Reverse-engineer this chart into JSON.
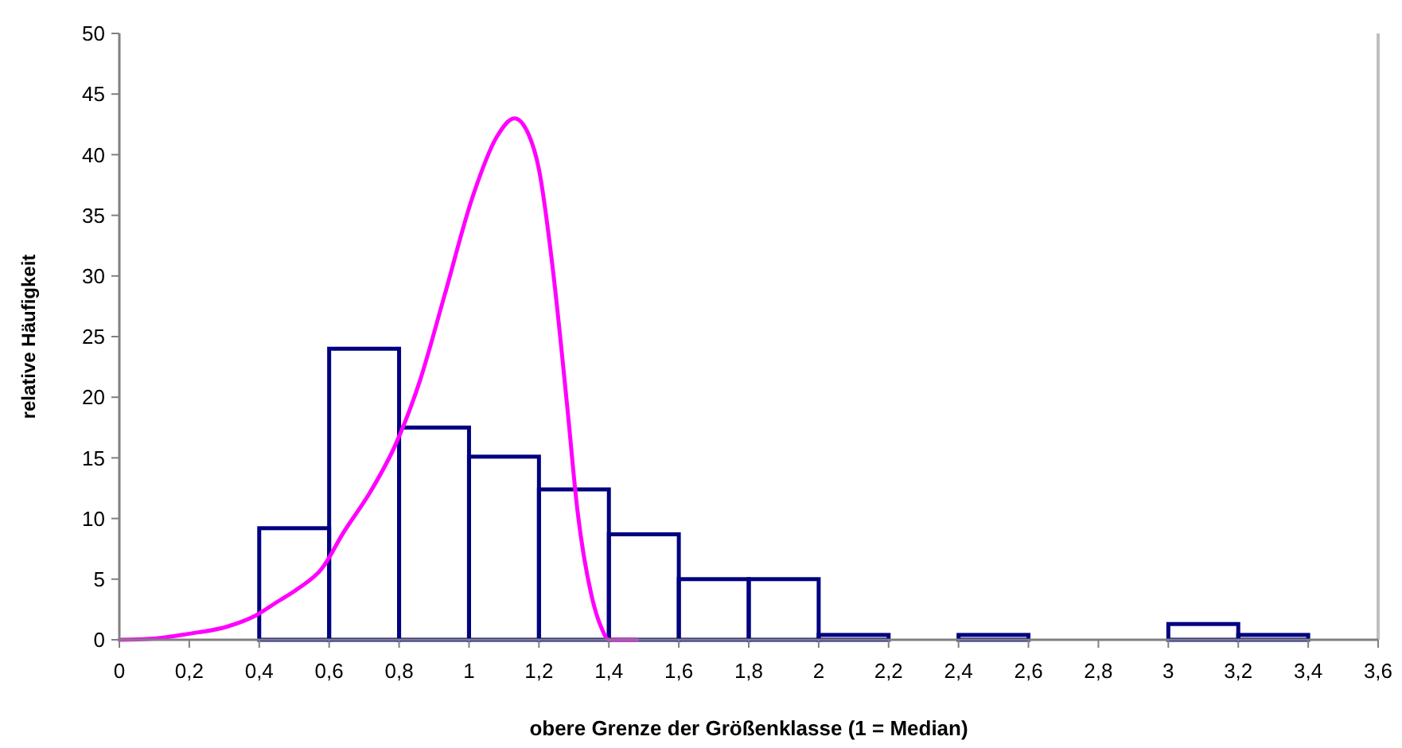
{
  "chart_data": {
    "type": "histogram",
    "xlabel": "obere Grenze der Größenklasse (1 = Median)",
    "ylabel": "relative Häufigkeit",
    "xlim": [
      0,
      3.6
    ],
    "xticks": [
      0,
      {
        "value": 0.2,
        "label": "0,2"
      },
      {
        "value": 0.4,
        "label": "0,4"
      },
      {
        "value": 0.6,
        "label": "0,6"
      },
      {
        "value": 0.8,
        "label": "0,8"
      },
      1,
      {
        "value": 1.2,
        "label": "1,2"
      },
      {
        "value": 1.4,
        "label": "1,4"
      },
      {
        "value": 1.6,
        "label": "1,6"
      },
      {
        "value": 1.8,
        "label": "1,8"
      },
      2,
      {
        "value": 2.2,
        "label": "2,2"
      },
      {
        "value": 2.4,
        "label": "2,4"
      },
      {
        "value": 2.6,
        "label": "2,6"
      },
      {
        "value": 2.8,
        "label": "2,8"
      },
      3,
      {
        "value": 3.2,
        "label": "3,2"
      },
      {
        "value": 3.4,
        "label": "3,4"
      },
      {
        "value": 3.6,
        "label": "3,6"
      }
    ],
    "ylim": [
      0,
      50
    ],
    "yticks": [
      0,
      5,
      10,
      15,
      20,
      25,
      30,
      35,
      40,
      45,
      50
    ],
    "grid": false,
    "series": [
      {
        "color": "#000080",
        "bins": [
          0,
          0.2,
          0.4,
          0.6,
          0.8,
          1,
          1.2,
          1.4,
          1.6,
          1.8,
          2,
          2.2,
          2.4,
          2.6,
          2.8,
          3,
          3.2,
          3.4
        ],
        "values": [
          0,
          0,
          9.2,
          24,
          17.5,
          15.1,
          12.4,
          8.7,
          5,
          5,
          0.4,
          0,
          0.4,
          0,
          0,
          1.3,
          0.4
        ]
      },
      {
        "type": "line",
        "color": "#ff00ff",
        "x": [
          0,
          0.1,
          0.2,
          0.31,
          0.39,
          0.45,
          0.51,
          0.58,
          0.64,
          0.72,
          0.79,
          0.86,
          0.93,
          1.01,
          1.08,
          1.13,
          1.17,
          1.2,
          1.24,
          1.28,
          1.31,
          1.35,
          1.38,
          1.4,
          1.48
        ],
        "values": [
          0,
          0.1,
          0.5,
          1.1,
          2,
          3.1,
          4.2,
          5.9,
          8.8,
          12.3,
          16.1,
          21.4,
          28.4,
          36.5,
          41.5,
          43,
          41.7,
          38.8,
          30.5,
          19.5,
          10.7,
          3.7,
          0.9,
          0,
          0
        ]
      }
    ]
  }
}
